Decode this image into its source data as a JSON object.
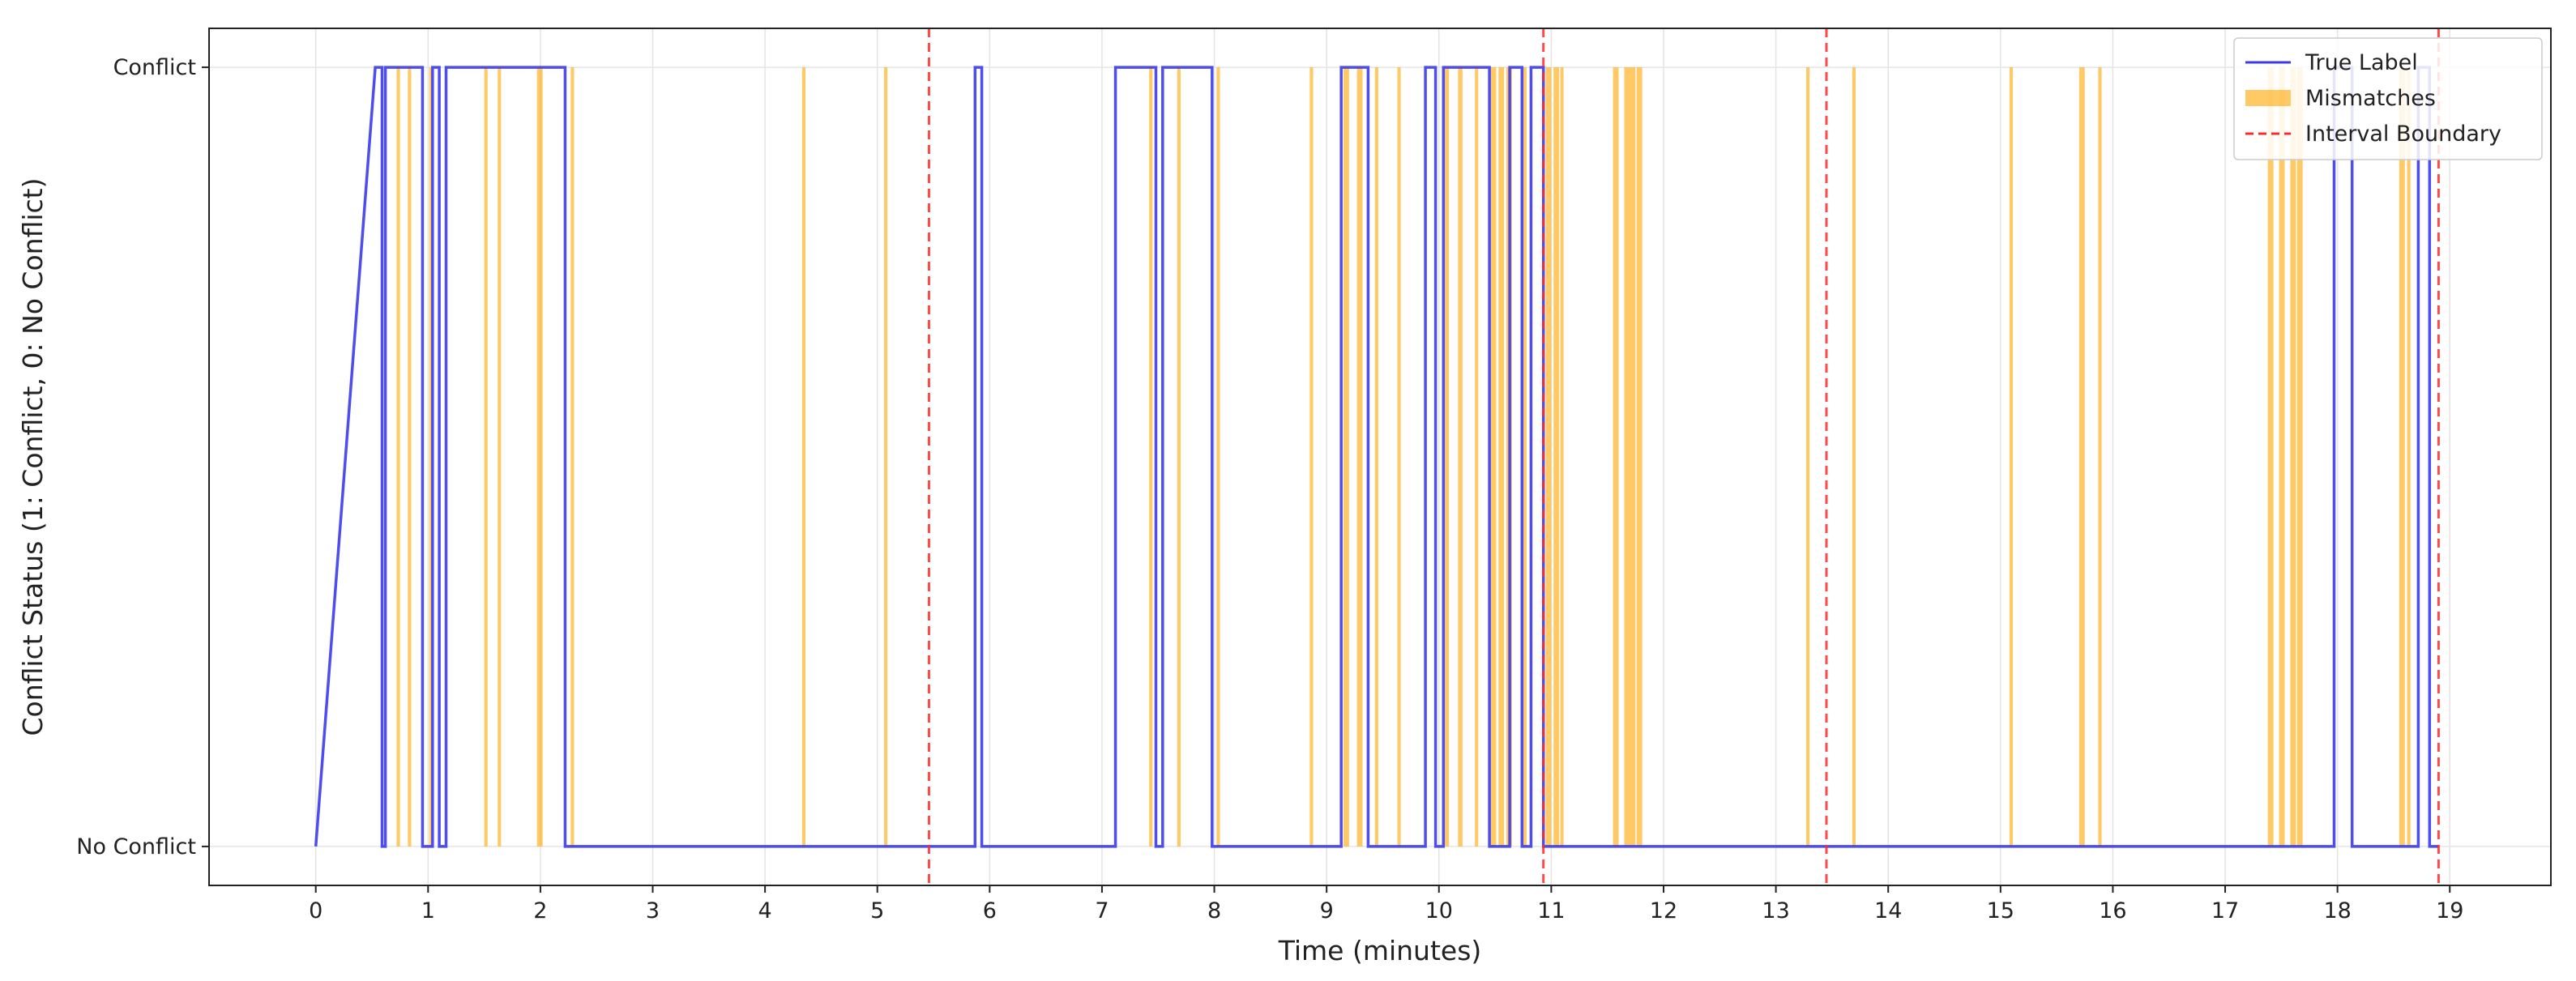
{
  "chart_data": {
    "type": "line",
    "title": "",
    "xlabel": "Time (minutes)",
    "ylabel": "Conflict Status (1: Conflict, 0: No Conflict)",
    "xlim": [
      -0.95,
      19.9
    ],
    "ylim": [
      -0.05,
      1.05
    ],
    "xticks": [
      0,
      1,
      2,
      3,
      4,
      5,
      6,
      7,
      8,
      9,
      10,
      11,
      12,
      13,
      14,
      15,
      16,
      17,
      18,
      19
    ],
    "yticks": [
      {
        "value": 0,
        "label": "No Conflict"
      },
      {
        "value": 1,
        "label": "Conflict"
      }
    ],
    "grid": true,
    "legend": {
      "placement": "top-right",
      "entries": [
        {
          "key": "true_label",
          "label": "True Label",
          "style": "line"
        },
        {
          "key": "mismatches",
          "label": "Mismatches",
          "style": "patch"
        },
        {
          "key": "boundary",
          "label": "Interval Boundary",
          "style": "dashed"
        }
      ]
    },
    "colors": {
      "true_label": "#3a3aee",
      "mismatches": "#ffa500",
      "boundary": "#ff2a2a",
      "grid": "#e4e4e4",
      "axis": "#222222"
    },
    "series": [
      {
        "name": "True Label",
        "step": true,
        "points": [
          [
            0,
            0
          ],
          [
            0.53,
            1
          ],
          [
            0.59,
            1
          ],
          [
            0.59,
            0
          ],
          [
            0.62,
            0
          ],
          [
            0.62,
            1
          ],
          [
            0.95,
            1
          ],
          [
            0.95,
            0
          ],
          [
            1.04,
            0
          ],
          [
            1.04,
            1
          ],
          [
            1.1,
            1
          ],
          [
            1.1,
            0
          ],
          [
            1.16,
            0
          ],
          [
            1.16,
            1
          ],
          [
            2.22,
            1
          ],
          [
            2.22,
            0
          ],
          [
            5.87,
            0
          ],
          [
            5.87,
            1
          ],
          [
            5.93,
            1
          ],
          [
            5.93,
            0
          ],
          [
            7.12,
            0
          ],
          [
            7.12,
            1
          ],
          [
            7.48,
            1
          ],
          [
            7.48,
            0
          ],
          [
            7.54,
            0
          ],
          [
            7.54,
            1
          ],
          [
            7.98,
            1
          ],
          [
            7.98,
            0
          ],
          [
            9.13,
            0
          ],
          [
            9.13,
            1
          ],
          [
            9.37,
            1
          ],
          [
            9.37,
            0
          ],
          [
            9.88,
            0
          ],
          [
            9.88,
            1
          ],
          [
            9.97,
            1
          ],
          [
            9.97,
            0
          ],
          [
            10.04,
            0
          ],
          [
            10.04,
            1
          ],
          [
            10.45,
            1
          ],
          [
            10.45,
            0
          ],
          [
            10.63,
            0
          ],
          [
            10.63,
            1
          ],
          [
            10.74,
            1
          ],
          [
            10.74,
            0
          ],
          [
            10.82,
            0
          ],
          [
            10.82,
            1
          ],
          [
            10.93,
            1
          ],
          [
            10.93,
            0
          ],
          [
            17.97,
            0
          ],
          [
            17.97,
            1
          ],
          [
            18.13,
            1
          ],
          [
            18.13,
            0
          ],
          [
            18.72,
            0
          ],
          [
            18.72,
            1
          ],
          [
            18.82,
            1
          ],
          [
            18.82,
            0
          ],
          [
            18.9,
            0
          ]
        ]
      }
    ],
    "mismatches": [
      {
        "x": 0.72,
        "w": 0.03
      },
      {
        "x": 0.82,
        "w": 0.03
      },
      {
        "x": 1.01,
        "w": 0.02
      },
      {
        "x": 1.5,
        "w": 0.03
      },
      {
        "x": 1.62,
        "w": 0.03
      },
      {
        "x": 1.97,
        "w": 0.05
      },
      {
        "x": 2.27,
        "w": 0.03
      },
      {
        "x": 4.33,
        "w": 0.03
      },
      {
        "x": 5.06,
        "w": 0.03
      },
      {
        "x": 7.42,
        "w": 0.03
      },
      {
        "x": 7.67,
        "w": 0.03
      },
      {
        "x": 8.02,
        "w": 0.03
      },
      {
        "x": 8.85,
        "w": 0.03
      },
      {
        "x": 9.15,
        "w": 0.05
      },
      {
        "x": 9.27,
        "w": 0.05
      },
      {
        "x": 9.43,
        "w": 0.03
      },
      {
        "x": 9.63,
        "w": 0.03
      },
      {
        "x": 10.05,
        "w": 0.04
      },
      {
        "x": 10.17,
        "w": 0.04
      },
      {
        "x": 10.32,
        "w": 0.03
      },
      {
        "x": 10.46,
        "w": 0.05
      },
      {
        "x": 10.53,
        "w": 0.05
      },
      {
        "x": 10.6,
        "w": 0.05
      },
      {
        "x": 10.75,
        "w": 0.03
      },
      {
        "x": 10.95,
        "w": 0.05
      },
      {
        "x": 11.02,
        "w": 0.05
      },
      {
        "x": 11.08,
        "w": 0.03
      },
      {
        "x": 11.55,
        "w": 0.05
      },
      {
        "x": 11.65,
        "w": 0.05
      },
      {
        "x": 11.7,
        "w": 0.05
      },
      {
        "x": 11.76,
        "w": 0.05
      },
      {
        "x": 13.27,
        "w": 0.03
      },
      {
        "x": 13.68,
        "w": 0.03
      },
      {
        "x": 15.08,
        "w": 0.03
      },
      {
        "x": 15.7,
        "w": 0.05
      },
      {
        "x": 15.87,
        "w": 0.03
      },
      {
        "x": 17.38,
        "w": 0.05
      },
      {
        "x": 17.48,
        "w": 0.05
      },
      {
        "x": 17.58,
        "w": 0.05
      },
      {
        "x": 17.64,
        "w": 0.05
      },
      {
        "x": 18.55,
        "w": 0.05
      },
      {
        "x": 18.62,
        "w": 0.03
      }
    ],
    "interval_boundaries": [
      5.46,
      10.93,
      13.45,
      18.9
    ]
  }
}
